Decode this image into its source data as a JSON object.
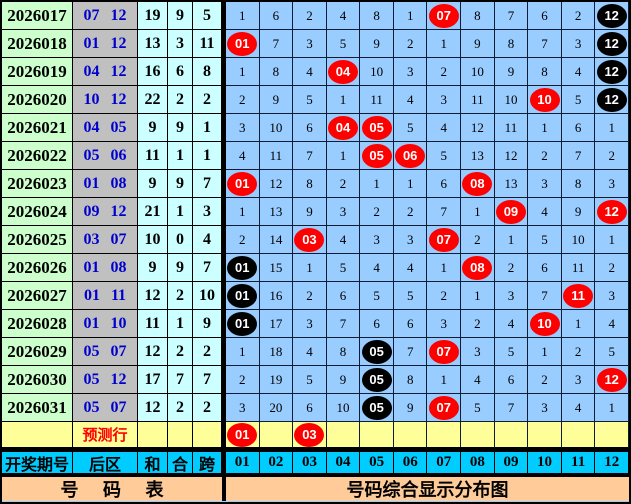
{
  "chart_data": {
    "type": "table",
    "title": "号码综合显示分布图",
    "left_title": "号 码 表",
    "prediction_label": "预测行",
    "column_headers": {
      "period": "开奖期号",
      "back_zone": "后区",
      "sum": "和",
      "combo": "合",
      "span": "跨"
    },
    "number_columns": [
      "01",
      "02",
      "03",
      "04",
      "05",
      "06",
      "07",
      "08",
      "09",
      "10",
      "11",
      "12"
    ],
    "rows": [
      {
        "period": "2026017",
        "back": "07 12",
        "sum": "19",
        "combo": "9",
        "span": "5",
        "cells": [
          "1",
          "6",
          "2",
          "4",
          "8",
          "1",
          {
            "ball": "07",
            "color": "red"
          },
          "8",
          "7",
          "6",
          "2",
          {
            "ball": "12",
            "color": "black"
          }
        ]
      },
      {
        "period": "2026018",
        "back": "01 12",
        "sum": "13",
        "combo": "3",
        "span": "11",
        "cells": [
          {
            "ball": "01",
            "color": "red"
          },
          "7",
          "3",
          "5",
          "9",
          "2",
          "1",
          "9",
          "8",
          "7",
          "3",
          {
            "ball": "12",
            "color": "black"
          }
        ]
      },
      {
        "period": "2026019",
        "back": "04 12",
        "sum": "16",
        "combo": "6",
        "span": "8",
        "cells": [
          "1",
          "8",
          "4",
          {
            "ball": "04",
            "color": "red"
          },
          "10",
          "3",
          "2",
          "10",
          "9",
          "8",
          "4",
          {
            "ball": "12",
            "color": "black"
          }
        ]
      },
      {
        "period": "2026020",
        "back": "10 12",
        "sum": "22",
        "combo": "2",
        "span": "2",
        "cells": [
          "2",
          "9",
          "5",
          "1",
          "11",
          "4",
          "3",
          "11",
          "10",
          {
            "ball": "10",
            "color": "red"
          },
          "5",
          {
            "ball": "12",
            "color": "black"
          }
        ]
      },
      {
        "period": "2026021",
        "back": "04 05",
        "sum": "9",
        "combo": "9",
        "span": "1",
        "cells": [
          "3",
          "10",
          "6",
          {
            "ball": "04",
            "color": "red"
          },
          {
            "ball": "05",
            "color": "red"
          },
          "5",
          "4",
          "12",
          "11",
          "1",
          "6",
          "1"
        ]
      },
      {
        "period": "2026022",
        "back": "05 06",
        "sum": "11",
        "combo": "1",
        "span": "1",
        "cells": [
          "4",
          "11",
          "7",
          "1",
          {
            "ball": "05",
            "color": "red"
          },
          {
            "ball": "06",
            "color": "red"
          },
          "5",
          "13",
          "12",
          "2",
          "7",
          "2"
        ]
      },
      {
        "period": "2026023",
        "back": "01 08",
        "sum": "9",
        "combo": "9",
        "span": "7",
        "cells": [
          {
            "ball": "01",
            "color": "red"
          },
          "12",
          "8",
          "2",
          "1",
          "1",
          "6",
          {
            "ball": "08",
            "color": "red"
          },
          "13",
          "3",
          "8",
          "3"
        ]
      },
      {
        "period": "2026024",
        "back": "09 12",
        "sum": "21",
        "combo": "1",
        "span": "3",
        "cells": [
          "1",
          "13",
          "9",
          "3",
          "2",
          "2",
          "7",
          "1",
          {
            "ball": "09",
            "color": "red"
          },
          "4",
          "9",
          {
            "ball": "12",
            "color": "red"
          }
        ]
      },
      {
        "period": "2026025",
        "back": "03 07",
        "sum": "10",
        "combo": "0",
        "span": "4",
        "cells": [
          "2",
          "14",
          {
            "ball": "03",
            "color": "red"
          },
          "4",
          "3",
          "3",
          {
            "ball": "07",
            "color": "red"
          },
          "2",
          "1",
          "5",
          "10",
          "1"
        ]
      },
      {
        "period": "2026026",
        "back": "01 08",
        "sum": "9",
        "combo": "9",
        "span": "7",
        "cells": [
          {
            "ball": "01",
            "color": "black"
          },
          "15",
          "1",
          "5",
          "4",
          "4",
          "1",
          {
            "ball": "08",
            "color": "red"
          },
          "2",
          "6",
          "11",
          "2"
        ]
      },
      {
        "period": "2026027",
        "back": "01 11",
        "sum": "12",
        "combo": "2",
        "span": "10",
        "cells": [
          {
            "ball": "01",
            "color": "black"
          },
          "16",
          "2",
          "6",
          "5",
          "5",
          "2",
          "1",
          "3",
          "7",
          {
            "ball": "11",
            "color": "red"
          },
          "3"
        ]
      },
      {
        "period": "2026028",
        "back": "01 10",
        "sum": "11",
        "combo": "1",
        "span": "9",
        "cells": [
          {
            "ball": "01",
            "color": "black"
          },
          "17",
          "3",
          "7",
          "6",
          "6",
          "3",
          "2",
          "4",
          {
            "ball": "10",
            "color": "red"
          },
          "1",
          "4"
        ]
      },
      {
        "period": "2026029",
        "back": "05 07",
        "sum": "12",
        "combo": "2",
        "span": "2",
        "cells": [
          "1",
          "18",
          "4",
          "8",
          {
            "ball": "05",
            "color": "black"
          },
          "7",
          {
            "ball": "07",
            "color": "red"
          },
          "3",
          "5",
          "1",
          "2",
          "5"
        ]
      },
      {
        "period": "2026030",
        "back": "05 12",
        "sum": "17",
        "combo": "7",
        "span": "7",
        "cells": [
          "2",
          "19",
          "5",
          "9",
          {
            "ball": "05",
            "color": "black"
          },
          "8",
          "1",
          "4",
          "6",
          "2",
          "3",
          {
            "ball": "12",
            "color": "red"
          }
        ]
      },
      {
        "period": "2026031",
        "back": "05 07",
        "sum": "12",
        "combo": "2",
        "span": "2",
        "cells": [
          "3",
          "20",
          "6",
          "10",
          {
            "ball": "05",
            "color": "black"
          },
          "9",
          {
            "ball": "07",
            "color": "red"
          },
          "5",
          "7",
          "3",
          "4",
          "1"
        ]
      }
    ],
    "prediction_cells": [
      {
        "ball": "01",
        "color": "red"
      },
      "",
      {
        "ball": "03",
        "color": "red"
      },
      "",
      "",
      "",
      "",
      "",
      "",
      "",
      "",
      ""
    ]
  },
  "colors": {
    "period_bg": "#ccffcc",
    "backzone_bg": "#c0c0c0",
    "stats_bg": "#ccffff",
    "grid_bg": "#99ccff",
    "prediction_bg": "#ffff99",
    "header_bg": "#00ccff",
    "footer_bg": "#ffcc99",
    "red_ball": "#ff0000",
    "black_ball": "#000000",
    "backzone_text": "#0000cc",
    "prediction_text": "#ff0000"
  }
}
